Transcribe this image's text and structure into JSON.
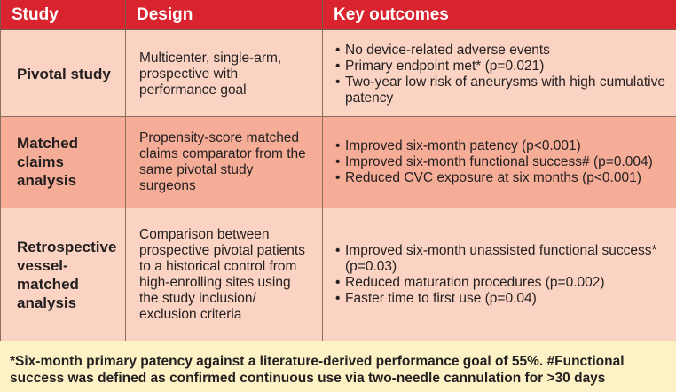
{
  "headers": [
    "Study",
    "Design",
    "Key outcomes"
  ],
  "rows": [
    {
      "study": "Pivotal study",
      "design": "Multicenter, single-arm, prospective with performance goal",
      "outcomes": [
        "No device-related adverse events",
        "Primary endpoint met* (p=0.021)",
        "Two-year low risk of aneurysms with high cumulative patency"
      ]
    },
    {
      "study": "Matched claims analysis",
      "design": "Propensity-score matched claims comparator from the same pivotal study surgeons",
      "outcomes": [
        "Improved six-month patency (p<0.001)",
        "Improved six-month functional success# (p=0.004)",
        "Reduced CVC exposure at six months (p<0.001)"
      ]
    },
    {
      "study": "Retrospective vessel-matched analysis",
      "design": "Comparison between prospective pivotal patients to a historical control from high-enrolling sites using the study inclusion/ exclusion criteria",
      "outcomes": [
        "Improved six-month unassisted functional success* (p=0.03)",
        "Reduced maturation procedures (p=0.002)",
        "Faster time to first use (p=0.04)"
      ]
    }
  ],
  "footnote": "*Six-month primary patency against a literature-derived performance goal of 55%. #Functional success was defined as confirmed continuous use via two-needle cannulation for >30 days",
  "colors": {
    "header": "#d9232f",
    "row_light": "#fbd3c2",
    "row_dark": "#f5ad97",
    "background": "#fdf2c6"
  }
}
